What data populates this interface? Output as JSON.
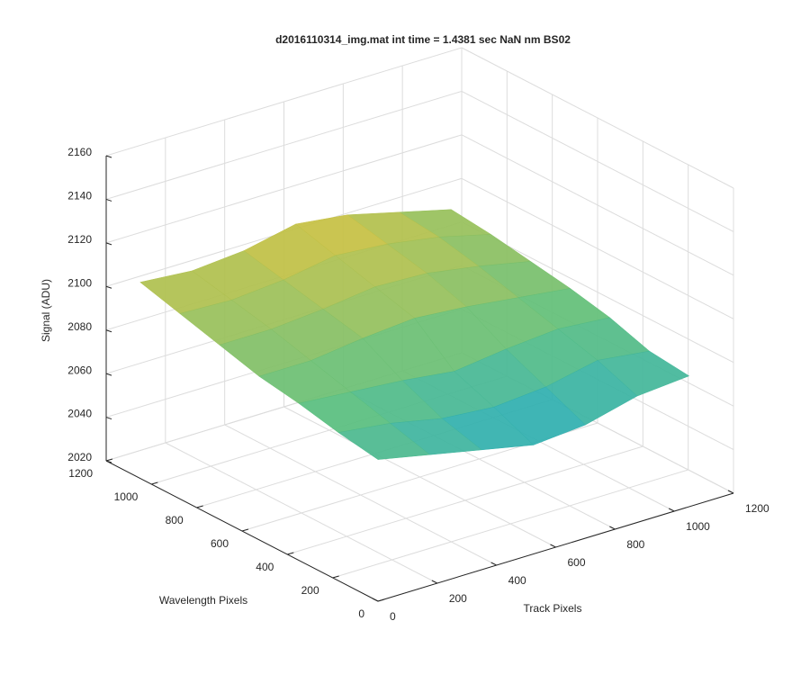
{
  "chart_data": {
    "type": "surface",
    "title": "d2016110314_img.mat int time = 1.4381 sec  NaN nm BS02",
    "xlabel": "Track Pixels",
    "ylabel": "Wavelength Pixels",
    "zlabel": "Signal (ADU)",
    "x": [
      0,
      175,
      350,
      525,
      700,
      875,
      1050
    ],
    "y": [
      0,
      175,
      350,
      525,
      700,
      875,
      1050
    ],
    "z": [
      [
        2085,
        2080,
        2075,
        2070,
        2072,
        2078,
        2080
      ],
      [
        2088,
        2085,
        2080,
        2078,
        2080,
        2085,
        2082
      ],
      [
        2092,
        2090,
        2088,
        2085,
        2088,
        2090,
        2088
      ],
      [
        2095,
        2095,
        2098,
        2100,
        2098,
        2095,
        2092
      ],
      [
        2100,
        2100,
        2102,
        2105,
        2104,
        2100,
        2095
      ],
      [
        2105,
        2104,
        2106,
        2110,
        2108,
        2104,
        2098
      ],
      [
        2110,
        2108,
        2110,
        2115,
        2112,
        2106,
        2100
      ]
    ],
    "xlim": [
      0,
      1200
    ],
    "ylim": [
      0,
      1200
    ],
    "zlim": [
      2020,
      2160
    ],
    "xticks": [
      0,
      200,
      400,
      600,
      800,
      1000,
      1200
    ],
    "yticks": [
      0,
      200,
      400,
      600,
      800,
      1000,
      1200
    ],
    "zticks": [
      2020,
      2040,
      2060,
      2080,
      2100,
      2120,
      2140,
      2160
    ],
    "grid": true,
    "colormap": [
      "#1a7fd8",
      "#1aa8c8",
      "#5cbf7a",
      "#c8c040",
      "#f3c232"
    ]
  }
}
